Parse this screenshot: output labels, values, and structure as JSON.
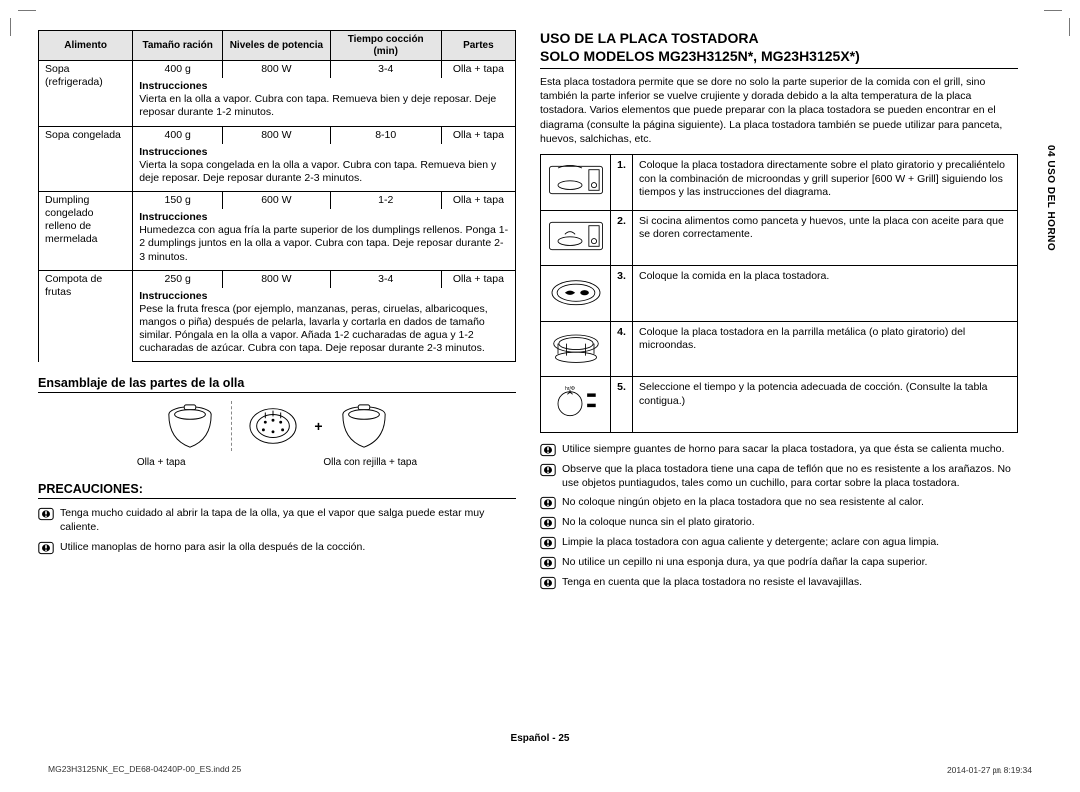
{
  "colors": {
    "headerBg": "#e5e5e5",
    "border": "#000000",
    "text": "#000000"
  },
  "sideTab": "04  USO DEL HORNO",
  "foodTable": {
    "headers": [
      "Alimento",
      "Tamaño ración",
      "Niveles de potencia",
      "Tiempo cocción (min)",
      "Partes"
    ],
    "instrLabel": "Instrucciones",
    "rows": [
      {
        "name": "Sopa (refrigerada)",
        "size": "400 g",
        "power": "800 W",
        "time": "3-4",
        "parts": "Olla + tapa",
        "instr": "Vierta en la olla a vapor. Cubra con tapa. Remueva bien y deje reposar. Deje reposar durante 1-2 minutos."
      },
      {
        "name": "Sopa congelada",
        "size": "400 g",
        "power": "800 W",
        "time": "8-10",
        "parts": "Olla + tapa",
        "instr": "Vierta la sopa congelada en la olla a vapor. Cubra con tapa. Remueva bien y deje reposar. Deje reposar durante 2-3 minutos."
      },
      {
        "name": "Dumpling congelado relleno de mermelada",
        "size": "150 g",
        "power": "600 W",
        "time": "1-2",
        "parts": "Olla + tapa",
        "instr": "Humedezca con agua fría la parte superior de los dumplings rellenos. Ponga 1-2 dumplings juntos en la olla a vapor. Cubra con tapa. Deje reposar durante 2-3 minutos."
      },
      {
        "name": "Compota de frutas",
        "size": "250 g",
        "power": "800 W",
        "time": "3-4",
        "parts": "Olla + tapa",
        "instr": "Pese la fruta fresca (por ejemplo, manzanas, peras, ciruelas, albaricoques, mangos o piña) después de pelarla, lavarla y cortarla en dados de tamaño similar. Póngala en la olla a vapor. Añada 1-2 cucharadas de agua y 1-2 cucharadas de azúcar. Cubra con tapa. Deje reposar durante 2-3 minutos."
      }
    ]
  },
  "assemblyTitle": "Ensamblaje de las partes de la olla",
  "assemblyLabels": {
    "a": "Olla + tapa",
    "b": "Olla con rejilla + tapa"
  },
  "precautionsTitle": "PRECAUCIONES:",
  "precautions": [
    "Tenga mucho cuidado al abrir la tapa de la olla, ya que el vapor que salga puede estar muy caliente.",
    "Utilice manoplas de horno para asir la olla después de la cocción."
  ],
  "rightTitle1": "USO DE LA PLACA TOSTADORA",
  "rightTitle2": "SOLO MODELOS MG23H3125N*, MG23H3125X*)",
  "rightIntro": "Esta placa tostadora permite que se dore no solo la parte superior de la comida con el grill, sino también la parte inferior se vuelve crujiente y dorada debido a la alta temperatura de la placa tostadora. Varios elementos que puede preparar con la placa tostadora se pueden encontrar en el diagrama (consulte la página siguiente). La placa tostadora también se puede utilizar para panceta, huevos, salchichas, etc.",
  "steps": [
    "Coloque la placa tostadora directamente sobre el plato giratorio y precaliéntelo con la combinación de microondas y grill superior [600 W + Grill] siguiendo los tiempos y las instrucciones del diagrama.",
    "Si cocina alimentos como panceta y huevos, unte la placa con aceite para que se doren correctamente.",
    "Coloque la comida en la placa tostadora.",
    "Coloque la placa tostadora en la parrilla metálica (o plato giratorio) del microondas.",
    "Seleccione el tiempo y la potencia adecuada de cocción. (Consulte la tabla contigua.)"
  ],
  "rightBullets": [
    "Utilice siempre guantes de horno para sacar la placa tostadora, ya que ésta se calienta mucho.",
    "Observe que la placa tostadora tiene una capa de teflón que no es resistente a los arañazos. No use objetos puntiagudos, tales como un cuchillo, para cortar sobre la placa tostadora.",
    "No coloque ningún objeto en la placa tostadora que no sea resistente al calor.",
    "No la coloque nunca sin el plato giratorio.",
    "Limpie la placa tostadora con agua caliente y detergente; aclare con agua limpia.",
    "No utilice un cepillo ni una esponja dura, ya que podría dañar la capa superior.",
    "Tenga en cuenta que la placa tostadora no resiste el lavavajillas."
  ],
  "footer": {
    "lang": "Español",
    "page": "25"
  },
  "printline": {
    "left": "MG23H3125NK_EC_DE68-04240P-00_ES.indd   25",
    "right": "2014-01-27   ㏘ 8:19:34"
  }
}
